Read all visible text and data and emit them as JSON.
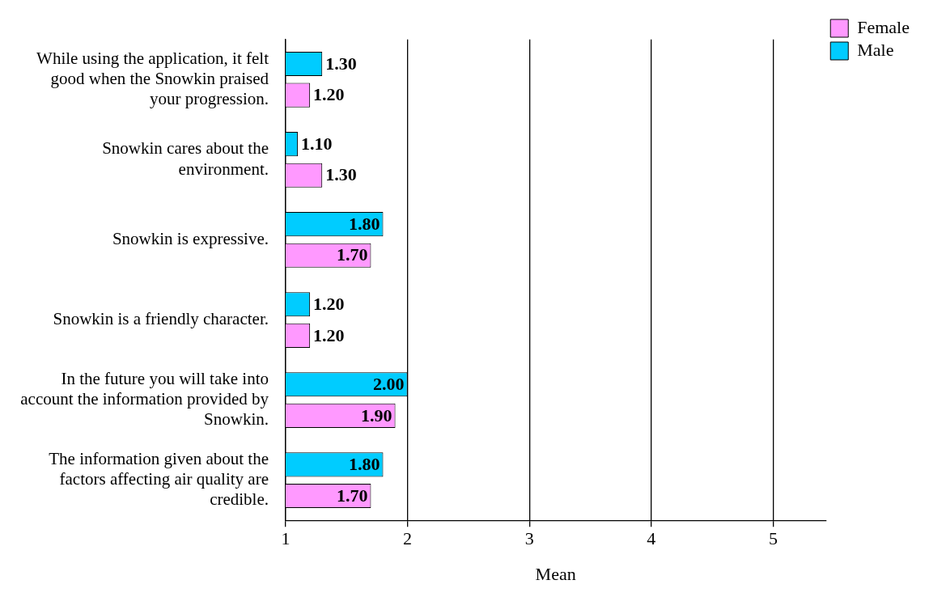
{
  "chart_data": {
    "type": "bar",
    "orientation": "horizontal",
    "xlabel": "Mean",
    "categories": [
      "While using the application, it felt good when the Snowkin praised your progression.",
      "Snowkin cares about the environment.",
      "Snowkin is expressive.",
      "Snowkin is a friendly character.",
      "In the future you will take into account the information provided by Snowkin.",
      "The information given about the factors affecting air quality are credible."
    ],
    "series": [
      {
        "name": "Male",
        "color": "#00ccff",
        "values": [
          1.3,
          1.1,
          1.8,
          1.2,
          2.0,
          1.8
        ],
        "value_labels": [
          "1.30",
          "1.10",
          "1.80",
          "1.20",
          "2.00",
          "1.80"
        ]
      },
      {
        "name": "Female",
        "color": "#ff99ff",
        "values": [
          1.2,
          1.3,
          1.7,
          1.2,
          1.9,
          1.7
        ],
        "value_labels": [
          "1.20",
          "1.30",
          "1.70",
          "1.20",
          "1.90",
          "1.70"
        ]
      }
    ],
    "xlim": [
      1,
      5.43
    ],
    "xticks": [
      1,
      2,
      3,
      4,
      5
    ],
    "grid": "x",
    "legend": "top right"
  }
}
